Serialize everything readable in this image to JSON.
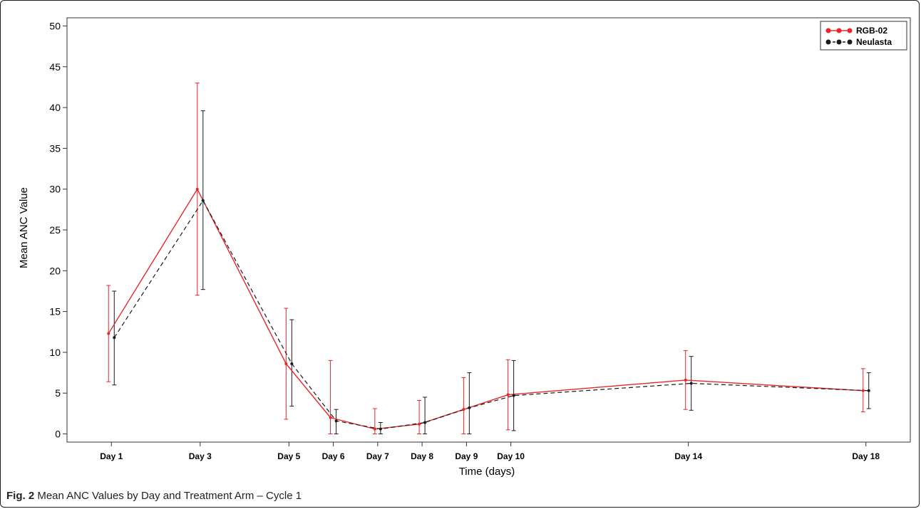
{
  "caption": {
    "label": "Fig. 2",
    "text": " Mean ANC Values by Day and Treatment Arm – Cycle 1"
  },
  "chart_data": {
    "type": "line",
    "xlabel": "Time (days)",
    "ylabel": "Mean ANC Value",
    "xlim": [
      0,
      19
    ],
    "ylim": [
      -1,
      51
    ],
    "yticks": [
      0,
      5,
      10,
      15,
      20,
      25,
      30,
      35,
      40,
      45,
      50
    ],
    "categories": [
      "Day 1",
      "Day 3",
      "Day 5",
      "Day 6",
      "Day 7",
      "Day 8",
      "Day 9",
      "Day 10",
      "Day 14",
      "Day 18"
    ],
    "x": [
      1,
      3,
      5,
      6,
      7,
      8,
      9,
      10,
      14,
      18
    ],
    "legend_position": "top-right",
    "grid": false,
    "series": [
      {
        "name": "RGB-02",
        "color": "#e8262b",
        "line_style": "solid",
        "values": [
          12.3,
          30.0,
          8.6,
          2.0,
          0.6,
          1.2,
          3.0,
          4.8,
          6.6,
          5.3
        ],
        "error_low": [
          6.4,
          17.0,
          1.8,
          0.0,
          0.0,
          0.0,
          0.0,
          0.5,
          3.0,
          2.7
        ],
        "error_high": [
          18.2,
          43.0,
          15.4,
          9.0,
          3.1,
          4.1,
          6.9,
          9.1,
          10.2,
          8.0
        ]
      },
      {
        "name": "Neulasta",
        "color": "#1a1a1a",
        "line_style": "dashed",
        "values": [
          11.8,
          28.6,
          8.6,
          1.6,
          0.6,
          1.4,
          3.2,
          4.7,
          6.2,
          5.3
        ],
        "error_low": [
          6.0,
          17.7,
          3.4,
          0.0,
          0.0,
          0.0,
          0.0,
          0.4,
          2.9,
          3.1
        ],
        "error_high": [
          17.5,
          39.6,
          14.0,
          3.0,
          1.4,
          4.5,
          7.5,
          9.0,
          9.5,
          7.5
        ]
      }
    ]
  }
}
